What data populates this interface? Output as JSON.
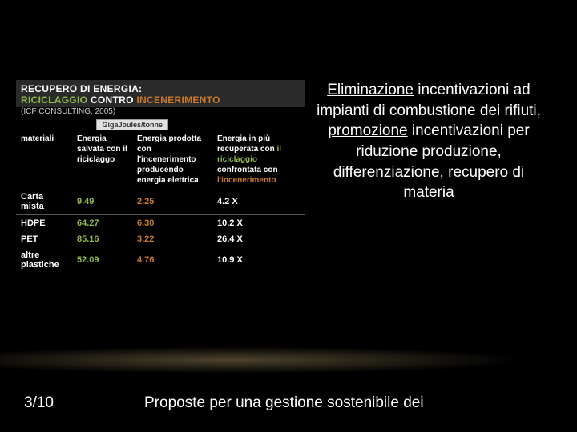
{
  "table": {
    "title_line1": "RECUPERO DI ENERGIA:",
    "title_line2_parts": {
      "a": "RICICLAGGIO",
      "b": " CONTRO ",
      "c": "INCENERIMENTO"
    },
    "subtitle": "(ICF CONSULTING, 2005)",
    "unit": "GigaJoules/tonne",
    "headers": {
      "col1": "materiali",
      "col2": "Energia salvata con il riciclaggo",
      "col3": "Energia prodotta con l'incenerimento producendo energia elettrica",
      "col4_a": "Energia in più recuperata con ",
      "col4_b": "il riciclaggio",
      "col4_c": " confrontata con ",
      "col4_d": "l'incenerimento"
    },
    "rows": [
      {
        "material": "Carta mista",
        "saved": "9.49",
        "produced": "2.25",
        "ratio": "4.2  X"
      },
      {
        "material": "HDPE",
        "saved": "64.27",
        "produced": "6.30",
        "ratio": "10.2  X"
      },
      {
        "material": "PET",
        "saved": "85.16",
        "produced": "3.22",
        "ratio": "26.4  X"
      },
      {
        "material": "altre plastiche",
        "saved": "52.09",
        "produced": "4.76",
        "ratio": "10.9  X"
      }
    ]
  },
  "side_text": {
    "p1": "Eliminazione",
    "p2": " incentivazioni ad impianti di combustione dei rifiuti, ",
    "p3": "promozione",
    "p4": " incentivazioni per riduzione produzione, differenziazione, recupero di materia"
  },
  "footer": {
    "page": "3/10",
    "text": "Proposte per una gestione sostenibile dei"
  }
}
